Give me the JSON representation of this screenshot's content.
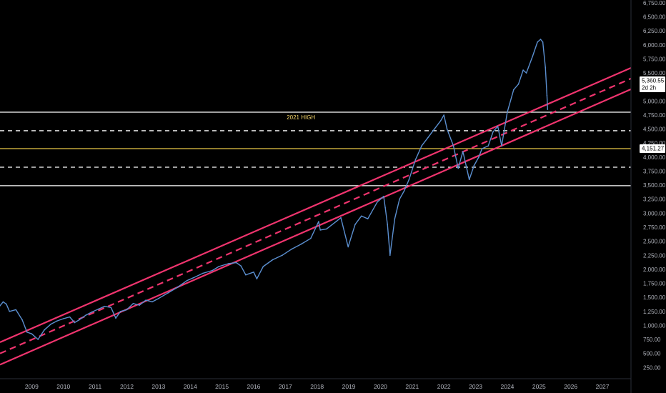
{
  "chart_data": {
    "type": "line",
    "title": "",
    "xlabel": "",
    "ylabel": "",
    "xlim": [
      2008.0,
      2027.9
    ],
    "ylim": [
      50,
      6800
    ],
    "grid": false,
    "legend": "none",
    "y_ticks": [
      "250.00",
      "500.00",
      "750.00",
      "1,000.00",
      "1,250.00",
      "1,500.00",
      "1,750.00",
      "2,000.00",
      "2,250.00",
      "2,500.00",
      "2,750.00",
      "3,000.00",
      "3,250.00",
      "3,500.00",
      "3,750.00",
      "4,000.00",
      "4,250.00",
      "4,500.00",
      "4,750.00",
      "5,000.00",
      "5,250.00",
      "5,500.00",
      "5,750.00",
      "6,000.00",
      "6,250.00",
      "6,500.00",
      "6,750.00"
    ],
    "y_tick_values": [
      250,
      500,
      750,
      1000,
      1250,
      1500,
      1750,
      2000,
      2250,
      2500,
      2750,
      3000,
      3250,
      3500,
      3750,
      4000,
      4250,
      4500,
      4750,
      5000,
      5250,
      5500,
      5750,
      6000,
      6250,
      6500,
      6750
    ],
    "x_ticks": [
      "2009",
      "2010",
      "2011",
      "2012",
      "2013",
      "2014",
      "2015",
      "2016",
      "2017",
      "2018",
      "2019",
      "2020",
      "2021",
      "2022",
      "2023",
      "2024",
      "2025",
      "2026",
      "2027"
    ],
    "x_tick_values": [
      2009,
      2010,
      2011,
      2012,
      2013,
      2014,
      2015,
      2016,
      2017,
      2018,
      2019,
      2020,
      2021,
      2022,
      2023,
      2024,
      2025,
      2026,
      2027
    ],
    "series": [
      {
        "color": "#5b8fd0",
        "x": [
          2008.0,
          2008.1,
          2008.2,
          2008.3,
          2008.5,
          2008.7,
          2008.85,
          2009.0,
          2009.2,
          2009.4,
          2009.6,
          2009.8,
          2010.0,
          2010.2,
          2010.35,
          2010.5,
          2010.7,
          2010.9,
          2011.1,
          2011.3,
          2011.5,
          2011.65,
          2011.8,
          2012.0,
          2012.2,
          2012.4,
          2012.6,
          2012.8,
          2013.0,
          2013.3,
          2013.6,
          2013.9,
          2014.1,
          2014.4,
          2014.7,
          2014.9,
          2015.2,
          2015.45,
          2015.6,
          2015.75,
          2016.0,
          2016.1,
          2016.3,
          2016.6,
          2016.9,
          2017.2,
          2017.5,
          2017.8,
          2018.05,
          2018.1,
          2018.3,
          2018.6,
          2018.75,
          2018.98,
          2019.2,
          2019.4,
          2019.6,
          2019.9,
          2020.1,
          2020.15,
          2020.22,
          2020.3,
          2020.45,
          2020.6,
          2020.75,
          2020.9,
          2021.1,
          2021.3,
          2021.5,
          2021.7,
          2021.9,
          2022.0,
          2022.1,
          2022.3,
          2022.45,
          2022.6,
          2022.8,
          2022.95,
          2023.1,
          2023.2,
          2023.4,
          2023.55,
          2023.7,
          2023.82,
          2024.0,
          2024.2,
          2024.35,
          2024.5,
          2024.6,
          2024.8,
          2024.95,
          2025.05,
          2025.12,
          2025.2,
          2025.25,
          2025.27
        ],
        "y": [
          1350,
          1420,
          1380,
          1250,
          1280,
          1100,
          880,
          850,
          750,
          920,
          1020,
          1080,
          1120,
          1150,
          1050,
          1100,
          1180,
          1240,
          1290,
          1340,
          1320,
          1130,
          1250,
          1280,
          1390,
          1360,
          1450,
          1420,
          1480,
          1580,
          1680,
          1800,
          1850,
          1930,
          1980,
          2050,
          2100,
          2120,
          2060,
          1900,
          1950,
          1830,
          2050,
          2170,
          2250,
          2360,
          2450,
          2550,
          2850,
          2700,
          2720,
          2850,
          2920,
          2400,
          2800,
          2950,
          2900,
          3200,
          3300,
          3100,
          2800,
          2250,
          2900,
          3250,
          3400,
          3600,
          3950,
          4200,
          4350,
          4500,
          4650,
          4750,
          4500,
          4200,
          3800,
          4100,
          3600,
          3850,
          4000,
          4150,
          4200,
          4450,
          4550,
          4200,
          4800,
          5200,
          5300,
          5550,
          5500,
          5800,
          6050,
          6100,
          6050,
          5600,
          5100,
          4850
        ]
      }
    ],
    "horizontal_levels": [
      {
        "value": 4800,
        "style": "solid",
        "color": "#ffffff",
        "label": "2021 HIGH"
      },
      {
        "value": 4470,
        "style": "dashed",
        "color": "#ffffff"
      },
      {
        "value": 4151.27,
        "style": "solid",
        "color": "#e8c547"
      },
      {
        "value": 3820,
        "style": "dashed",
        "color": "#ffffff"
      },
      {
        "value": 3490,
        "style": "solid",
        "color": "#ffffff"
      }
    ],
    "channel": [
      {
        "style": "solid",
        "color": "#f0346e",
        "from": [
          2008.0,
          700
        ],
        "to": [
          2027.9,
          5590
        ]
      },
      {
        "style": "dashed",
        "color": "#f0346e",
        "from": [
          2008.0,
          500
        ],
        "to": [
          2027.9,
          5400
        ]
      },
      {
        "style": "solid",
        "color": "#f0346e",
        "from": [
          2008.0,
          300
        ],
        "to": [
          2027.9,
          5210
        ]
      }
    ],
    "price_tags": [
      {
        "value_text": "5,360.55",
        "sub_text": "2d 2h",
        "value": 5360.55,
        "bg": "#ffffff",
        "fg": "#000000"
      },
      {
        "value_text": "4,151.27",
        "value": 4151.27,
        "bg": "#ffffff",
        "fg": "#000000"
      }
    ]
  }
}
